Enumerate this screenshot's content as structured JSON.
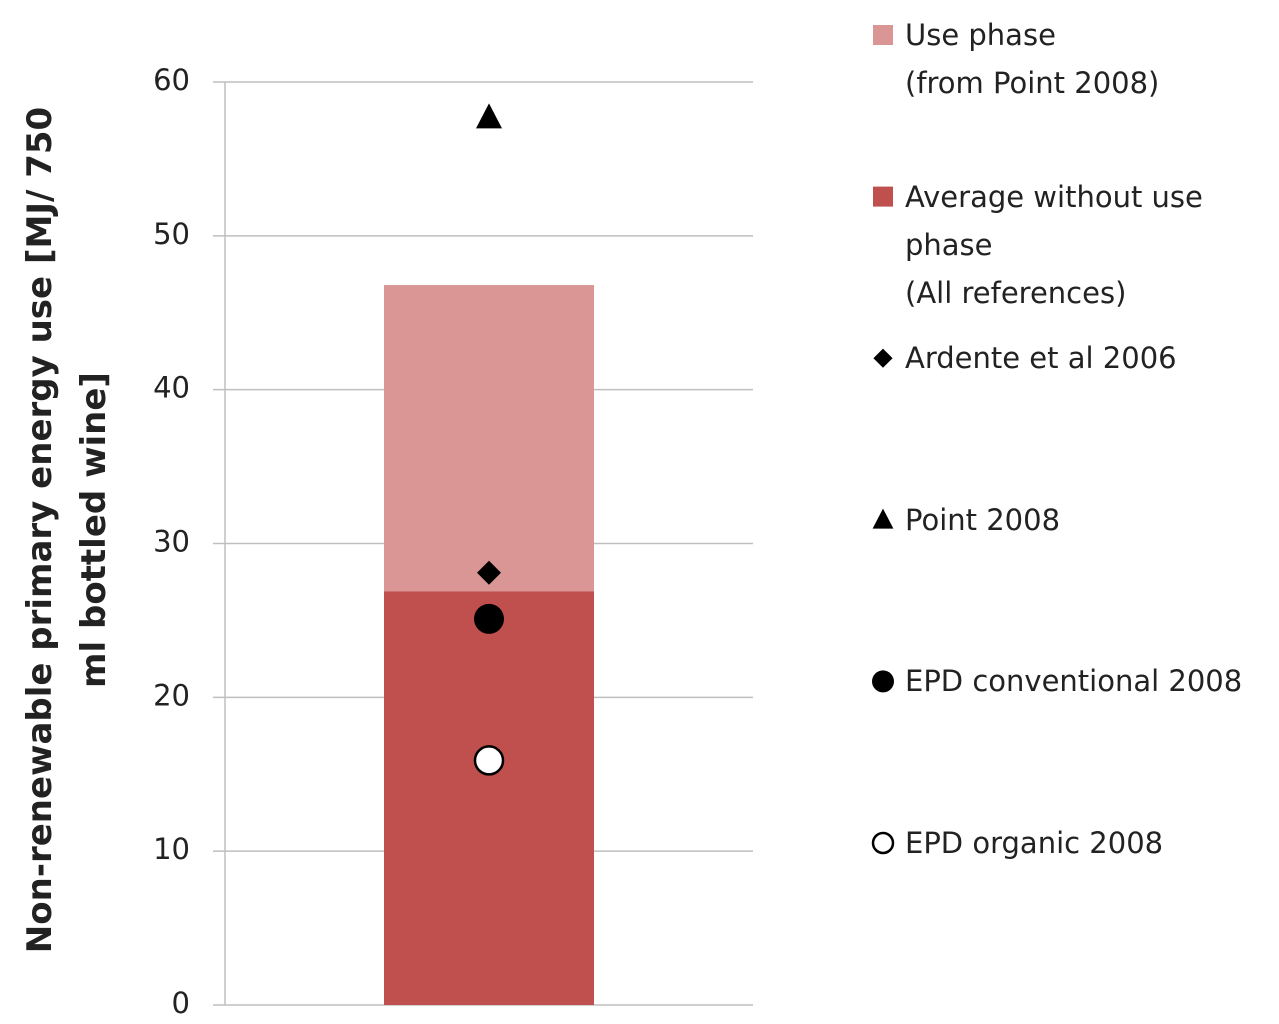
{
  "chart_data": {
    "type": "bar",
    "stacked": true,
    "y_label": "Non-renewable primary energy use [MJ/ 750\nml bottled wine]",
    "categories": [
      null
    ],
    "series": [
      {
        "name": "Use phase\n(from Point 2008)",
        "color": "#d99694",
        "values": [
          19.9
        ]
      },
      {
        "name": "Average without use\nphase\n(All references)",
        "color": "#c0504d",
        "values": [
          26.9
        ]
      },
      {
        "name": "Ardente et al 2006",
        "type": "scatter",
        "marker": "diamond",
        "color": "#000000",
        "values": [
          28.1
        ]
      },
      {
        "name": "Point 2008",
        "type": "scatter",
        "marker": "triangle",
        "color": "#000000",
        "values": [
          57.7
        ]
      },
      {
        "name": "EPD conventional 2008",
        "type": "scatter",
        "marker": "circle",
        "color": "#000000",
        "values": [
          25.1
        ]
      },
      {
        "name": "EPD organic 2008",
        "type": "scatter",
        "marker": "open-circle",
        "color": "#000000",
        "values": [
          15.9
        ]
      }
    ],
    "ylim": [
      0,
      60
    ],
    "yticks": [
      0,
      10,
      20,
      30,
      40,
      50,
      60
    ],
    "grid": true,
    "legend": "right"
  }
}
